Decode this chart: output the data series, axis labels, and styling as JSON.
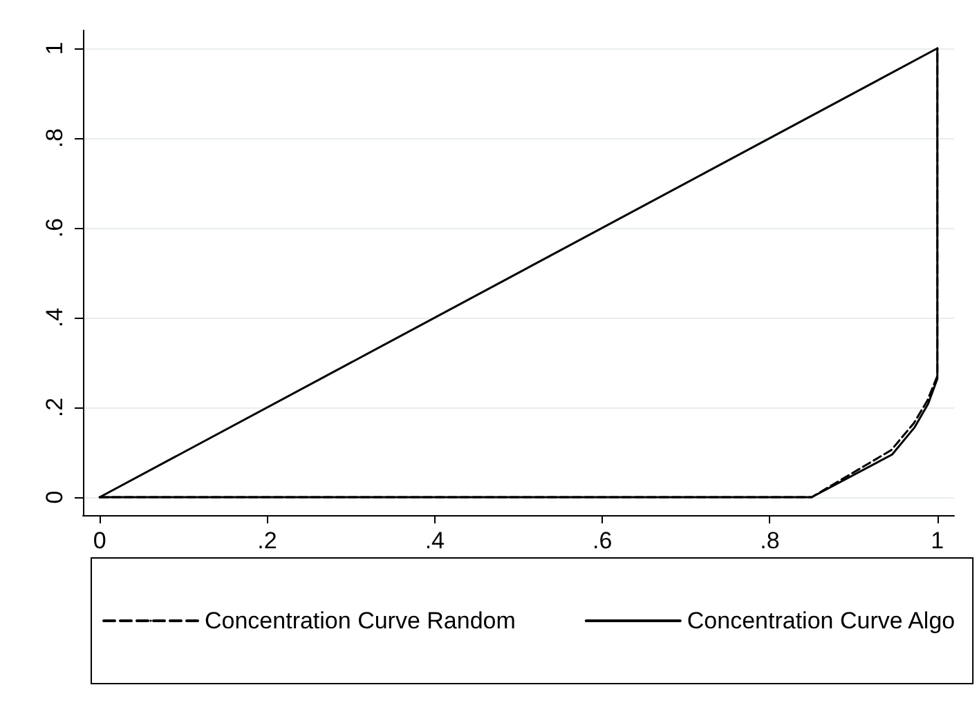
{
  "chart_data": {
    "type": "line",
    "series": [
      {
        "color": "#000000",
        "line_style": "solid",
        "x": [
          0,
          1
        ],
        "values": [
          0,
          1
        ]
      },
      {
        "name": "Concentration Curve Random",
        "color": "#000000",
        "line_style": "dashed",
        "x": [
          0,
          0.85,
          0.945,
          0.972,
          0.988,
          1,
          1
        ],
        "values": [
          0,
          0,
          0.105,
          0.165,
          0.215,
          0.27,
          1
        ]
      },
      {
        "name": "Concentration Curve Algo",
        "color": "#000000",
        "line_style": "solid",
        "x": [
          0,
          0.85,
          0.946,
          0.973,
          0.989,
          1,
          1
        ],
        "values": [
          0,
          0,
          0.095,
          0.156,
          0.208,
          0.264,
          1
        ]
      }
    ],
    "xlim": [
      -0.02,
      1.02
    ],
    "ylim": [
      -0.04,
      1.04
    ],
    "xticks": [
      0,
      {
        "value": 0.2,
        "label": ".2"
      },
      {
        "value": 0.4,
        "label": ".4"
      },
      {
        "value": 0.6,
        "label": ".6"
      },
      {
        "value": 0.8,
        "label": ".8"
      },
      1
    ],
    "yticks": [
      0,
      {
        "value": 0.2,
        "label": ".2"
      },
      {
        "value": 0.4,
        "label": ".4"
      },
      {
        "value": 0.6,
        "label": ".6"
      },
      {
        "value": 0.8,
        "label": ".8"
      },
      1
    ],
    "grid": "y",
    "legend": "bottom",
    "marker": "none"
  }
}
